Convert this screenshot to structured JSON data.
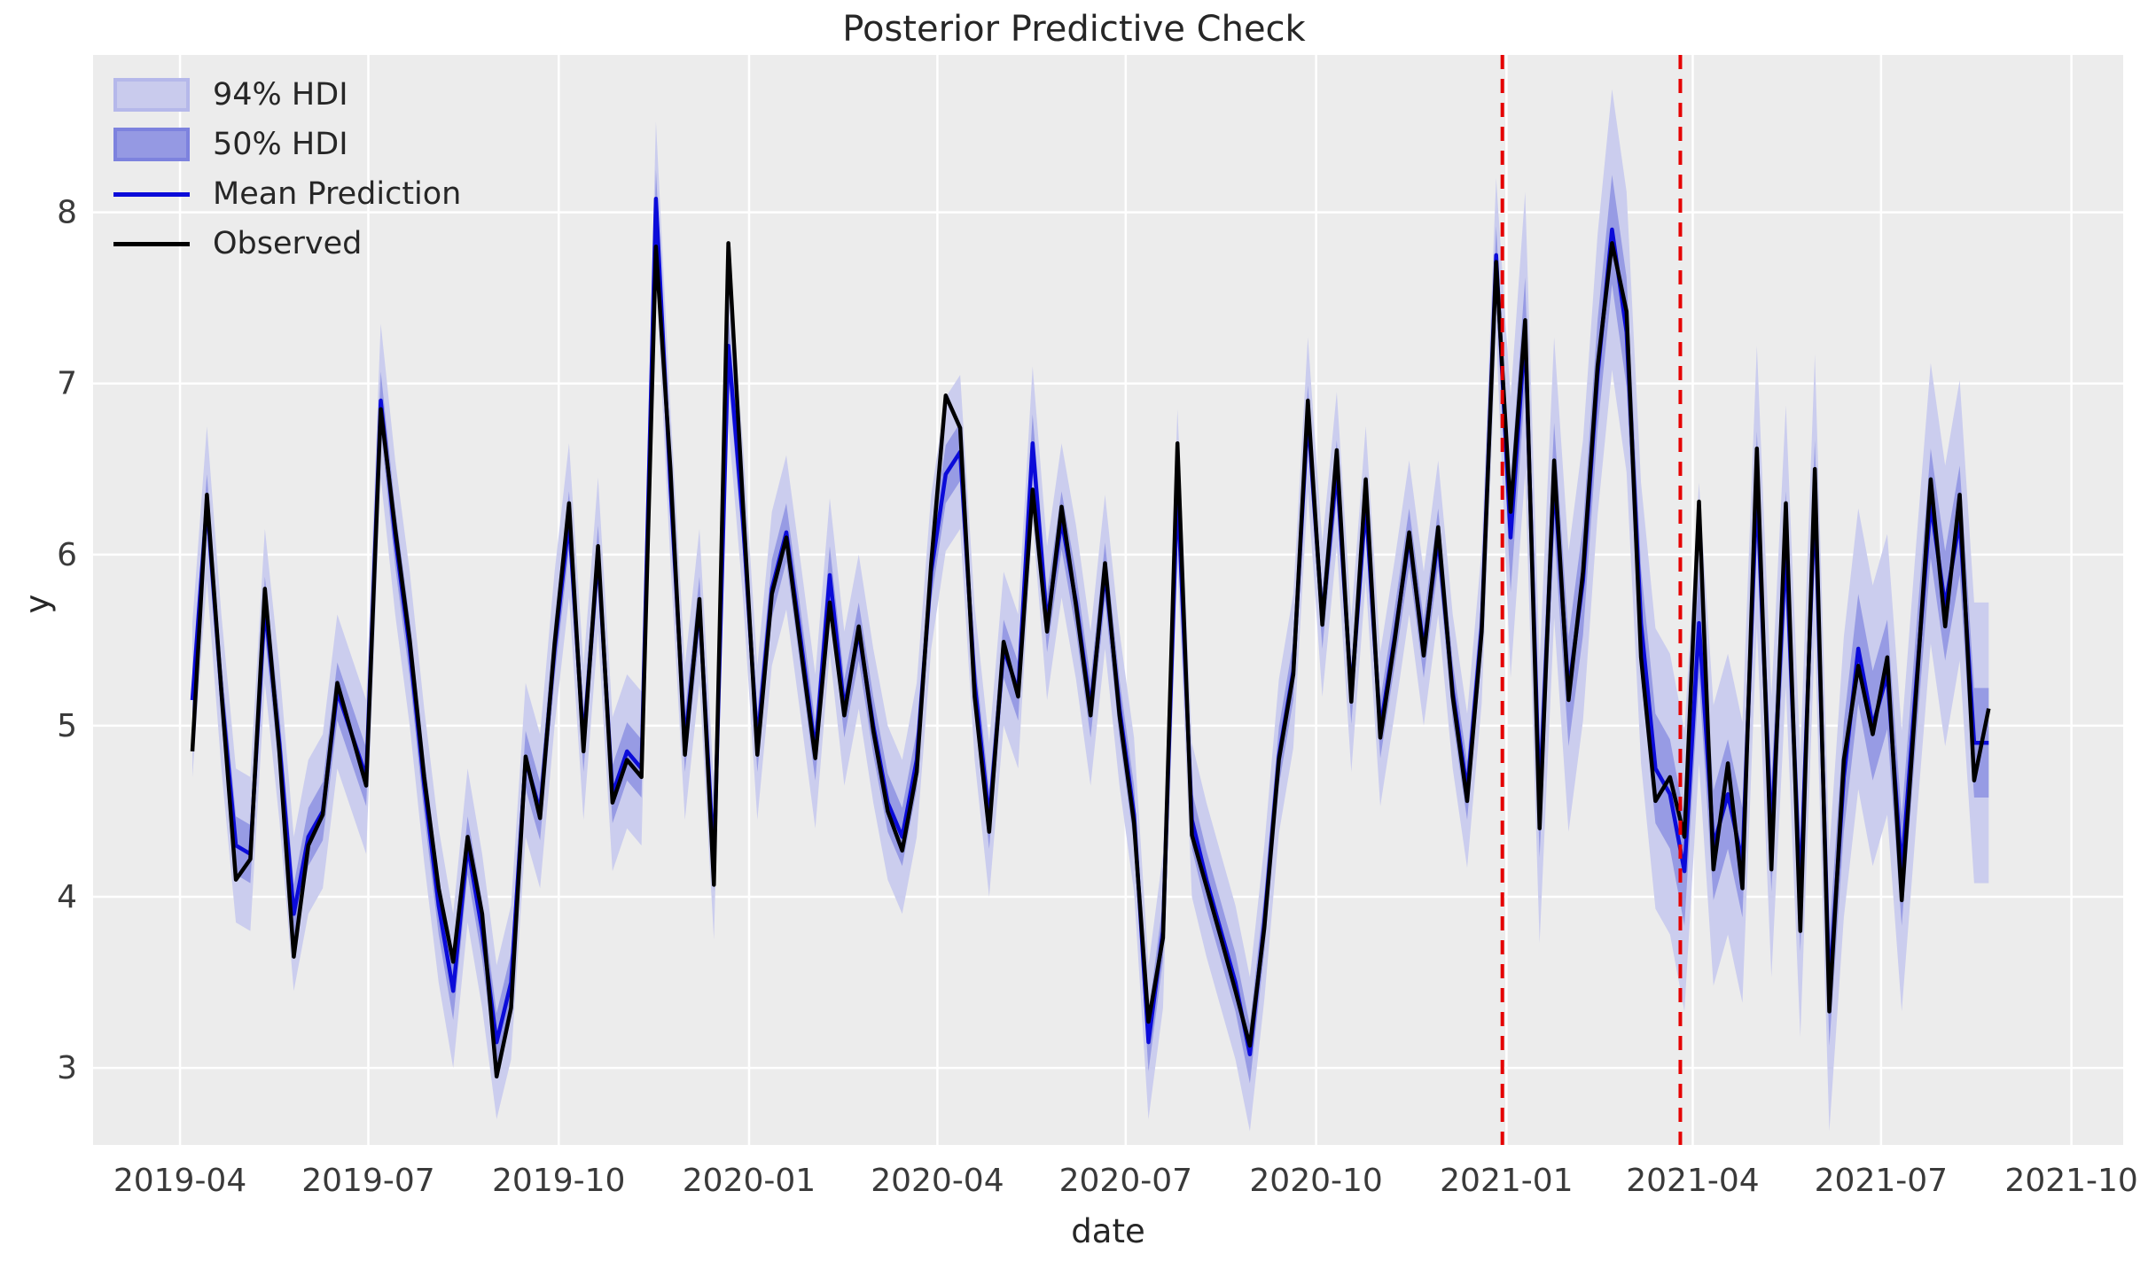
{
  "title": "Posterior Predictive Check",
  "axes": {
    "xlabel": "date",
    "ylabel": "y"
  },
  "legend": {
    "hdi94_label": "94% HDI",
    "hdi50_label": "50% HDI",
    "mean_label": "Mean Prediction",
    "observed_label": "Observed"
  },
  "colors": {
    "figure_bg": "#ffffff",
    "axes_bg": "#ececec",
    "grid": "#ffffff",
    "observed": "#000000",
    "mean": "#0b0bd9",
    "hdi94_fill": "#c9cbed",
    "hdi50_fill": "#9599e3",
    "event_line": "#e50000",
    "text": "#262626",
    "tick_text": "#3a3a3a"
  },
  "chart_data": {
    "type": "line",
    "title": "Posterior Predictive Check",
    "xlabel": "date",
    "ylabel": "y",
    "grid": true,
    "legend_position": "upper left",
    "x_domain": [
      "2019-02-18",
      "2021-10-26"
    ],
    "y_domain": [
      2.55,
      8.92
    ],
    "y_ticks": [
      3,
      4,
      5,
      6,
      7,
      8
    ],
    "x_tick_dates": [
      "2019-04-01",
      "2019-07-01",
      "2019-10-01",
      "2020-01-01",
      "2020-04-01",
      "2020-07-01",
      "2020-10-01",
      "2021-01-01",
      "2021-04-01",
      "2021-07-01",
      "2021-10-01"
    ],
    "x_tick_labels": [
      "2019-04",
      "2019-07",
      "2019-10",
      "2020-01",
      "2020-04",
      "2020-07",
      "2020-10",
      "2021-01",
      "2021-04",
      "2021-07",
      "2021-10"
    ],
    "event_lines": {
      "style": "dashed",
      "dates": [
        "2020-12-30",
        "2021-03-26"
      ]
    },
    "forecast_start_index": 91,
    "hdi94": {
      "half_width_in_sample": 0.45,
      "half_width_forecast": 0.82
    },
    "hdi50": {
      "half_width_in_sample": 0.17,
      "half_width_forecast": 0.32
    },
    "dates": [
      "2019-04-07",
      "2019-04-14",
      "2019-04-21",
      "2019-04-28",
      "2019-05-05",
      "2019-05-12",
      "2019-05-19",
      "2019-05-26",
      "2019-06-02",
      "2019-06-09",
      "2019-06-16",
      "2019-06-23",
      "2019-06-30",
      "2019-07-07",
      "2019-07-14",
      "2019-07-21",
      "2019-07-28",
      "2019-08-04",
      "2019-08-11",
      "2019-08-18",
      "2019-08-25",
      "2019-09-01",
      "2019-09-08",
      "2019-09-15",
      "2019-09-22",
      "2019-09-29",
      "2019-10-06",
      "2019-10-13",
      "2019-10-20",
      "2019-10-27",
      "2019-11-03",
      "2019-11-10",
      "2019-11-17",
      "2019-11-24",
      "2019-12-01",
      "2019-12-08",
      "2019-12-15",
      "2019-12-22",
      "2019-12-29",
      "2020-01-05",
      "2020-01-12",
      "2020-01-19",
      "2020-01-26",
      "2020-02-02",
      "2020-02-09",
      "2020-02-16",
      "2020-02-23",
      "2020-03-01",
      "2020-03-08",
      "2020-03-15",
      "2020-03-22",
      "2020-03-29",
      "2020-04-05",
      "2020-04-12",
      "2020-04-19",
      "2020-04-26",
      "2020-05-03",
      "2020-05-10",
      "2020-05-17",
      "2020-05-24",
      "2020-05-31",
      "2020-06-07",
      "2020-06-14",
      "2020-06-21",
      "2020-06-28",
      "2020-07-05",
      "2020-07-12",
      "2020-07-19",
      "2020-07-26",
      "2020-08-02",
      "2020-08-09",
      "2020-08-16",
      "2020-08-23",
      "2020-08-30",
      "2020-09-06",
      "2020-09-13",
      "2020-09-20",
      "2020-09-27",
      "2020-10-04",
      "2020-10-11",
      "2020-10-18",
      "2020-10-25",
      "2020-11-01",
      "2020-11-08",
      "2020-11-15",
      "2020-11-22",
      "2020-11-29",
      "2020-12-06",
      "2020-12-13",
      "2020-12-20",
      "2020-12-27",
      "2021-01-03",
      "2021-01-10",
      "2021-01-17",
      "2021-01-24",
      "2021-01-31",
      "2021-02-07",
      "2021-02-14",
      "2021-02-21",
      "2021-02-28",
      "2021-03-07",
      "2021-03-14",
      "2021-03-21",
      "2021-03-28",
      "2021-04-04",
      "2021-04-11",
      "2021-04-18",
      "2021-04-25",
      "2021-05-02",
      "2021-05-09",
      "2021-05-16",
      "2021-05-23",
      "2021-05-30",
      "2021-06-06",
      "2021-06-13",
      "2021-06-20",
      "2021-06-27",
      "2021-07-04",
      "2021-07-11",
      "2021-07-18",
      "2021-07-25",
      "2021-08-01",
      "2021-08-08",
      "2021-08-15",
      "2021-08-22"
    ],
    "series": [
      {
        "name": "Observed",
        "values": [
          4.85,
          6.35,
          5.2,
          4.1,
          4.22,
          5.8,
          4.85,
          3.65,
          4.3,
          4.48,
          5.25,
          4.95,
          4.65,
          6.85,
          6.15,
          5.5,
          4.7,
          4.05,
          3.62,
          4.35,
          3.9,
          2.95,
          3.35,
          4.82,
          4.46,
          5.48,
          6.3,
          4.85,
          6.05,
          4.55,
          4.8,
          4.7,
          7.8,
          6.5,
          4.83,
          5.74,
          4.07,
          7.82,
          6.3,
          4.83,
          5.77,
          6.1,
          5.45,
          4.81,
          5.72,
          5.06,
          5.58,
          4.97,
          4.5,
          4.27,
          4.73,
          5.95,
          6.93,
          6.74,
          5.17,
          4.38,
          5.49,
          5.17,
          6.38,
          5.55,
          6.28,
          5.7,
          5.06,
          5.95,
          5.06,
          4.43,
          3.27,
          3.76,
          6.65,
          4.36,
          4.06,
          3.76,
          3.45,
          3.13,
          3.82,
          4.8,
          5.3,
          6.9,
          5.59,
          6.61,
          5.14,
          6.44,
          4.93,
          5.5,
          6.13,
          5.41,
          6.16,
          5.17,
          4.56,
          5.55,
          7.71,
          6.25,
          7.37,
          4.4,
          6.55,
          5.15,
          5.9,
          7.1,
          7.82,
          7.42,
          5.4,
          4.56,
          4.7,
          4.35,
          6.31,
          4.16,
          4.78,
          4.05,
          6.62,
          4.16,
          6.3,
          3.8,
          6.5,
          3.33,
          4.8,
          5.35,
          4.95,
          5.4,
          3.98,
          5.2,
          6.44,
          5.58,
          6.35,
          4.68,
          5.1
        ]
      },
      {
        "name": "Mean Prediction",
        "values": [
          5.15,
          6.3,
          5.2,
          4.3,
          4.25,
          5.7,
          4.9,
          3.9,
          4.35,
          4.5,
          5.2,
          4.95,
          4.7,
          6.9,
          6.1,
          5.45,
          4.65,
          3.95,
          3.45,
          4.3,
          3.8,
          3.15,
          3.5,
          4.8,
          4.5,
          5.45,
          6.2,
          4.9,
          6.0,
          4.6,
          4.85,
          4.75,
          8.08,
          6.4,
          4.9,
          5.7,
          4.2,
          7.22,
          6.2,
          4.9,
          5.8,
          6.13,
          5.5,
          4.85,
          5.88,
          5.1,
          5.55,
          5.0,
          4.55,
          4.35,
          4.8,
          5.9,
          6.47,
          6.6,
          5.25,
          4.45,
          5.45,
          5.2,
          6.65,
          5.6,
          6.2,
          5.72,
          5.1,
          5.9,
          5.1,
          4.48,
          3.15,
          3.8,
          6.4,
          4.45,
          4.1,
          3.8,
          3.5,
          3.08,
          3.85,
          4.82,
          5.32,
          6.82,
          5.62,
          6.5,
          5.18,
          6.3,
          4.98,
          5.52,
          6.1,
          5.45,
          6.1,
          5.2,
          4.62,
          5.58,
          7.75,
          6.1,
          7.3,
          4.55,
          6.45,
          5.2,
          5.85,
          7.05,
          7.9,
          7.3,
          5.6,
          4.75,
          4.6,
          4.15,
          5.6,
          4.3,
          4.6,
          4.2,
          6.4,
          4.35,
          6.05,
          4.0,
          6.35,
          3.45,
          4.7,
          5.45,
          5.0,
          5.3,
          4.15,
          5.25,
          6.3,
          5.7,
          6.2,
          4.9,
          4.9
        ]
      }
    ]
  }
}
